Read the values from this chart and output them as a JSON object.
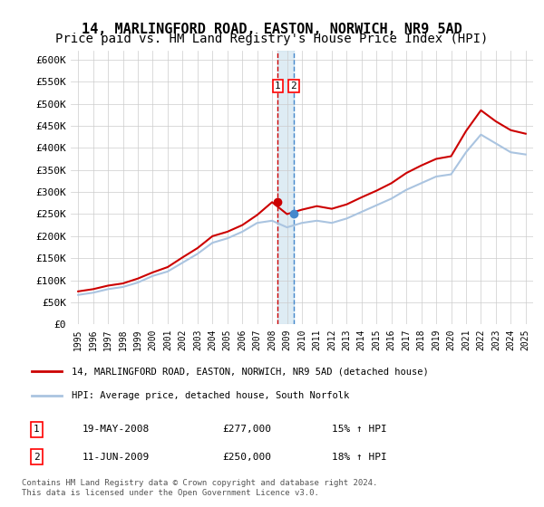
{
  "title": "14, MARLINGFORD ROAD, EASTON, NORWICH, NR9 5AD",
  "subtitle": "Price paid vs. HM Land Registry's House Price Index (HPI)",
  "legend_line1": "14, MARLINGFORD ROAD, EASTON, NORWICH, NR9 5AD (detached house)",
  "legend_line2": "HPI: Average price, detached house, South Norfolk",
  "table_row1_num": "1",
  "table_row1_date": "19-MAY-2008",
  "table_row1_price": "£277,000",
  "table_row1_hpi": "15% ↑ HPI",
  "table_row2_num": "2",
  "table_row2_date": "11-JUN-2009",
  "table_row2_price": "£250,000",
  "table_row2_hpi": "18% ↑ HPI",
  "footnote": "Contains HM Land Registry data © Crown copyright and database right 2024.\nThis data is licensed under the Open Government Licence v3.0.",
  "hpi_color": "#aac4e0",
  "price_color": "#cc0000",
  "marker_color": "#cc0000",
  "marker2_color": "#4488cc",
  "vline1_color": "#cc0000",
  "vline2_color": "#4488cc",
  "vband_color": "#d0e4f0",
  "ylim": [
    0,
    620000
  ],
  "yticks": [
    0,
    50000,
    100000,
    150000,
    200000,
    250000,
    300000,
    350000,
    400000,
    450000,
    500000,
    550000,
    600000
  ],
  "ytick_labels": [
    "£0",
    "£50K",
    "£100K",
    "£150K",
    "£200K",
    "£250K",
    "£300K",
    "£350K",
    "£400K",
    "£450K",
    "£500K",
    "£550K",
    "£600K"
  ],
  "years": [
    1995,
    1996,
    1997,
    1998,
    1999,
    2000,
    2001,
    2002,
    2003,
    2004,
    2005,
    2006,
    2007,
    2008,
    2009,
    2010,
    2011,
    2012,
    2013,
    2014,
    2015,
    2016,
    2017,
    2018,
    2019,
    2020,
    2021,
    2022,
    2023,
    2024,
    2025
  ],
  "hpi_values": [
    67000,
    72000,
    80000,
    85000,
    95000,
    110000,
    120000,
    140000,
    160000,
    185000,
    195000,
    210000,
    230000,
    235000,
    220000,
    230000,
    235000,
    230000,
    240000,
    255000,
    270000,
    285000,
    305000,
    320000,
    335000,
    340000,
    390000,
    430000,
    410000,
    390000,
    385000
  ],
  "price_values": [
    75000,
    80000,
    88000,
    93000,
    104000,
    118000,
    130000,
    152000,
    173000,
    200000,
    210000,
    225000,
    248000,
    277000,
    250000,
    260000,
    268000,
    262000,
    272000,
    288000,
    303000,
    320000,
    343000,
    360000,
    375000,
    381000,
    438000,
    485000,
    460000,
    440000,
    432000
  ],
  "sale1_year": 2008.38,
  "sale1_price": 277000,
  "sale2_year": 2009.45,
  "sale2_price": 250000,
  "background_color": "#ffffff",
  "grid_color": "#cccccc",
  "title_fontsize": 11,
  "subtitle_fontsize": 10
}
